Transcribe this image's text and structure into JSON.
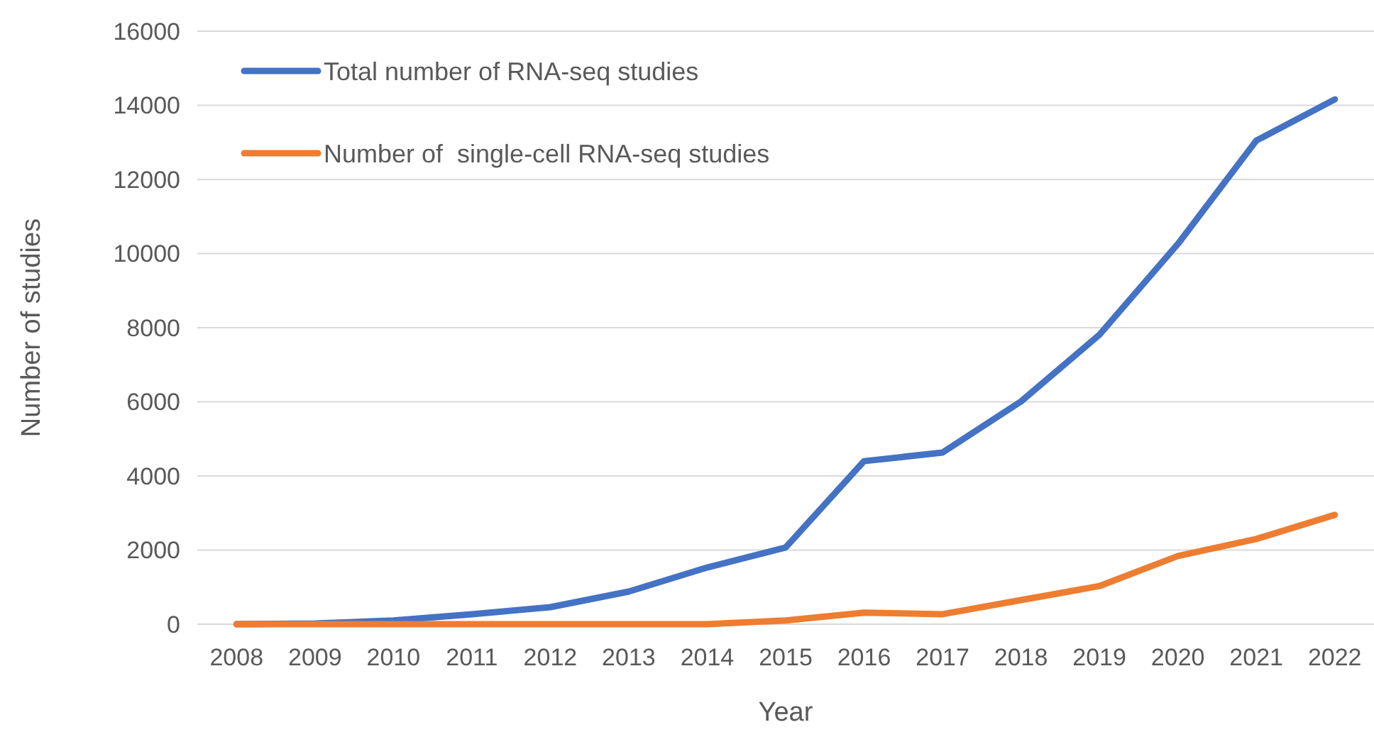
{
  "chart_data": {
    "type": "line",
    "xlabel": "Year",
    "ylabel": "Number of studies",
    "categories": [
      "2008",
      "2009",
      "2010",
      "2011",
      "2012",
      "2013",
      "2014",
      "2015",
      "2016",
      "2017",
      "2018",
      "2019",
      "2020",
      "2021",
      "2022"
    ],
    "series": [
      {
        "name": "Total number of RNA-seq studies",
        "color": "#4472c4",
        "values": [
          0,
          20,
          100,
          270,
          460,
          880,
          1530,
          2070,
          4400,
          4630,
          6010,
          7810,
          10260,
          13050,
          14160
        ]
      },
      {
        "name": "Number of  single-cell RNA-seq studies",
        "color": "#ed7d31",
        "values": [
          0,
          0,
          0,
          0,
          0,
          0,
          0,
          100,
          310,
          270,
          650,
          1030,
          1840,
          2300,
          2950
        ]
      }
    ],
    "ylim": [
      0,
      16000
    ],
    "yticks": [
      0,
      2000,
      4000,
      6000,
      8000,
      10000,
      12000,
      14000,
      16000
    ],
    "grid": "y",
    "legend": "top left",
    "marker": "none",
    "line_style": "solid"
  }
}
